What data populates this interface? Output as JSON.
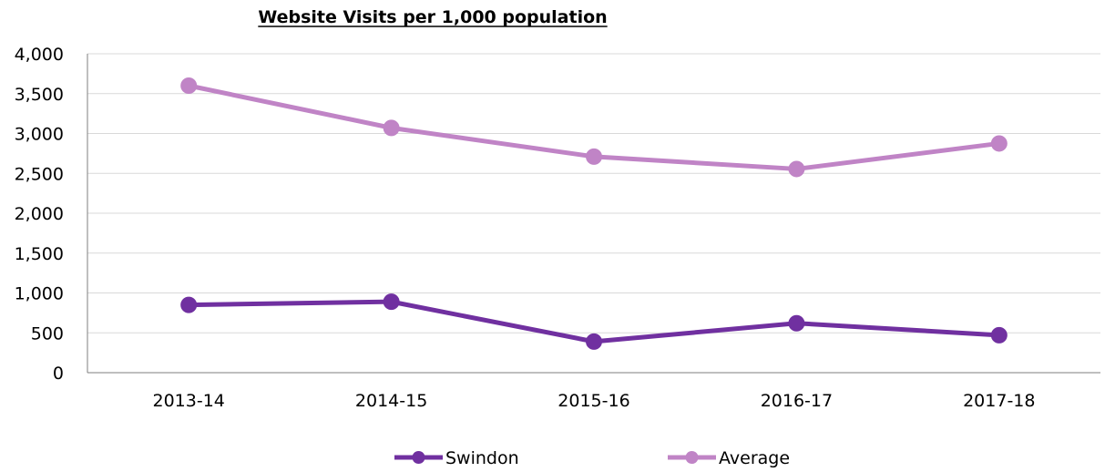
{
  "chart_data": {
    "type": "line",
    "title": "Website Visits per 1,000 population",
    "xlabel": "",
    "ylabel": "",
    "categories": [
      "2013-14",
      "2014-15",
      "2015-16",
      "2016-17",
      "2017-18"
    ],
    "ylim": [
      0,
      4000
    ],
    "y_ticks": [
      0,
      500,
      1000,
      1500,
      2000,
      2500,
      3000,
      3500,
      4000
    ],
    "y_tick_labels": [
      "0",
      "500",
      "1,000",
      "1,500",
      "2,000",
      "2,500",
      "3,000",
      "3,500",
      "4,000"
    ],
    "grid": true,
    "legend_position": "bottom",
    "series": [
      {
        "name": "Swindon",
        "values": [
          850,
          890,
          390,
          620,
          470
        ],
        "color": "#7030a0"
      },
      {
        "name": "Average",
        "values": [
          3600,
          3070,
          2710,
          2555,
          2875
        ],
        "color": "#c084c6"
      }
    ]
  }
}
